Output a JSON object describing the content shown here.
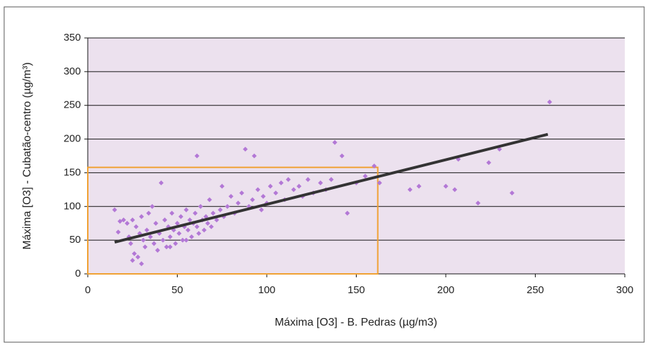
{
  "chart_data": {
    "type": "scatter",
    "xlabel": "Máxima [O3] - B. Pedras (µg/m3)",
    "ylabel": "Máxima [O3] - Cubatão-centro (µg/m³)",
    "xlim": [
      0,
      300
    ],
    "xticks": [
      0,
      50,
      100,
      150,
      200,
      250,
      300
    ],
    "ylim": [
      0,
      350
    ],
    "yticks": [
      0,
      50,
      100,
      150,
      200,
      250,
      300,
      350
    ],
    "grid": true,
    "series": [
      {
        "kind": "points",
        "color": "#b378d6",
        "x": [
          15,
          17,
          18,
          20,
          22,
          23,
          24,
          25,
          26,
          27,
          28,
          29,
          30,
          31,
          32,
          33,
          34,
          35,
          36,
          37,
          38,
          39,
          40,
          41,
          42,
          43,
          44,
          45,
          46,
          47,
          48,
          49,
          50,
          51,
          52,
          53,
          54,
          55,
          56,
          57,
          58,
          59,
          60,
          61,
          62,
          63,
          64,
          65,
          66,
          67,
          68,
          69,
          70,
          72,
          74,
          75,
          76,
          78,
          80,
          82,
          84,
          86,
          88,
          90,
          92,
          93,
          95,
          97,
          98,
          100,
          102,
          105,
          108,
          110,
          112,
          115,
          118,
          120,
          123,
          126,
          130,
          133,
          136,
          138,
          142,
          145,
          150,
          155,
          160,
          163,
          180,
          185,
          200,
          205,
          207,
          218,
          224,
          230,
          237,
          258,
          61,
          46,
          55,
          25,
          30
        ],
        "values": [
          95,
          62,
          78,
          80,
          75,
          55,
          45,
          80,
          30,
          70,
          25,
          60,
          85,
          50,
          40,
          65,
          90,
          55,
          100,
          45,
          75,
          35,
          60,
          135,
          50,
          80,
          40,
          70,
          55,
          90,
          65,
          45,
          75,
          60,
          85,
          50,
          70,
          95,
          65,
          80,
          55,
          75,
          90,
          70,
          60,
          100,
          80,
          65,
          85,
          75,
          110,
          70,
          90,
          80,
          95,
          130,
          85,
          100,
          115,
          90,
          105,
          120,
          185,
          100,
          110,
          175,
          125,
          95,
          115,
          105,
          130,
          120,
          135,
          110,
          140,
          125,
          130,
          115,
          140,
          120,
          135,
          125,
          140,
          195,
          175,
          90,
          135,
          145,
          160,
          135,
          125,
          130,
          130,
          125,
          170,
          105,
          165,
          185,
          120,
          255,
          175,
          40,
          50,
          20,
          15
        ]
      },
      {
        "kind": "trend",
        "color": "#333333",
        "x": [
          15,
          257
        ],
        "values": [
          47,
          207
        ]
      }
    ],
    "highlight": {
      "color": "#f0a030",
      "x": [
        0,
        162
      ],
      "values": [
        0,
        158
      ]
    }
  }
}
